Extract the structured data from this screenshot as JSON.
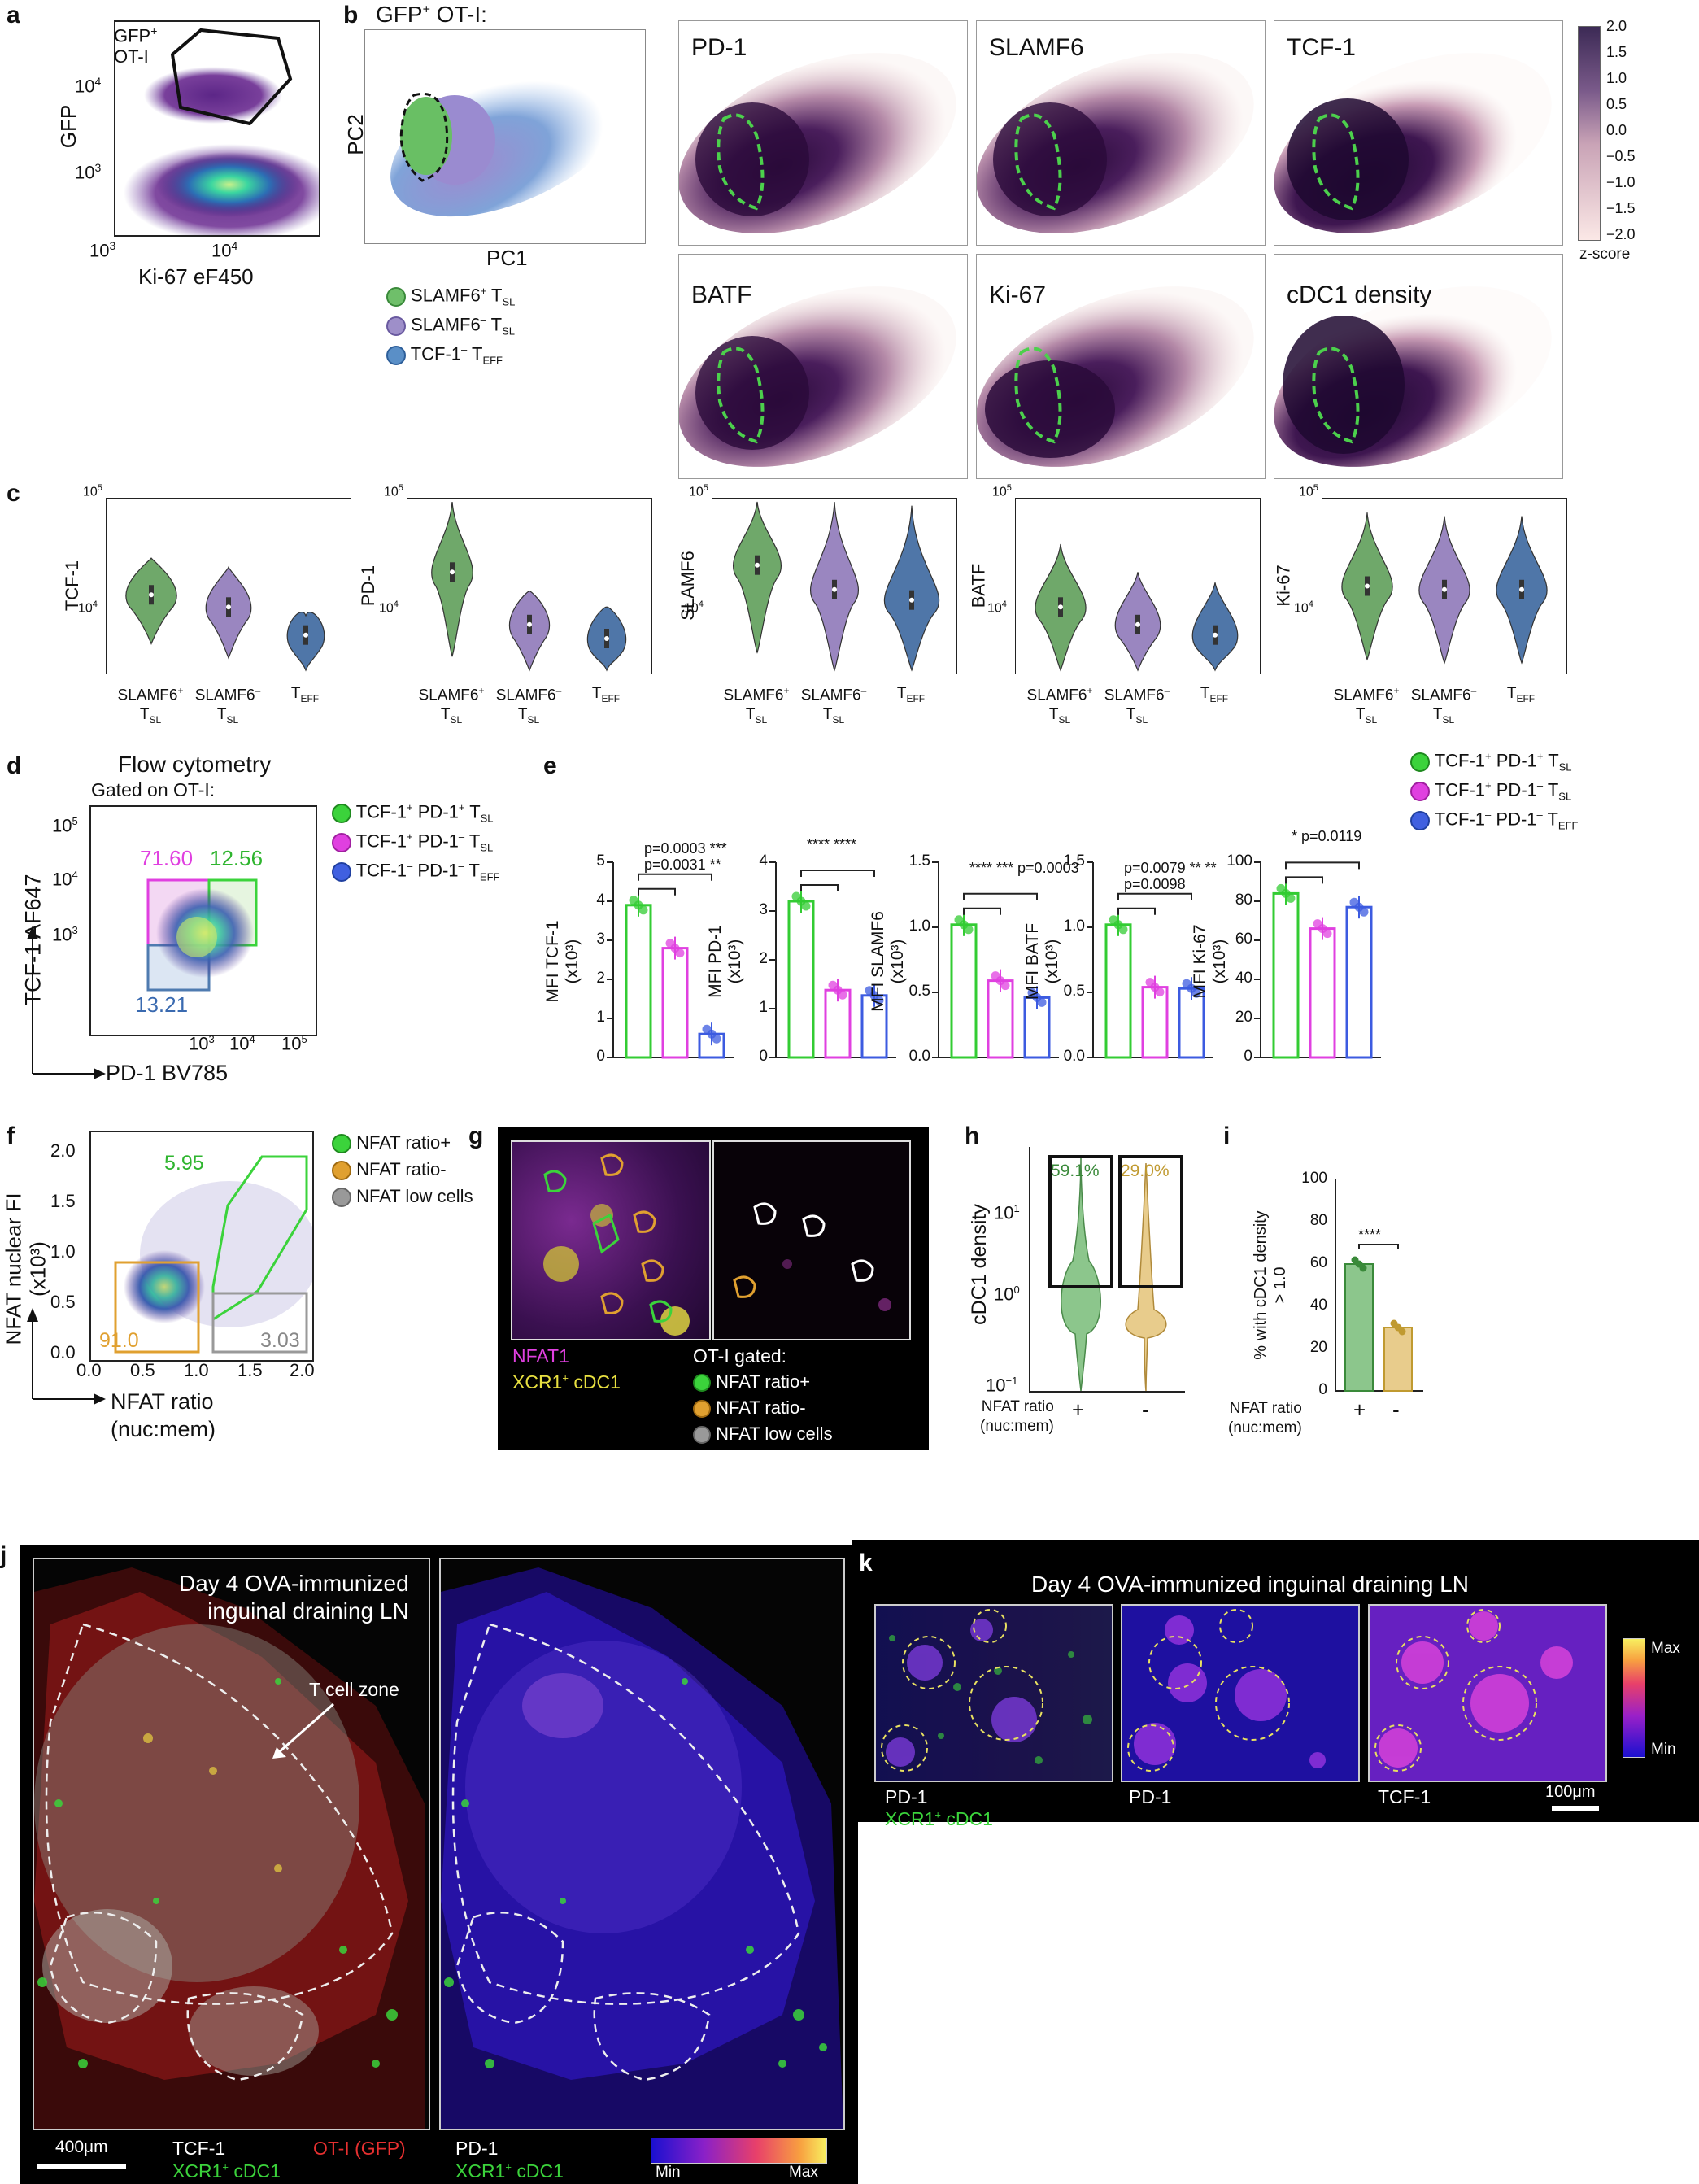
{
  "panel_letters": [
    "a",
    "b",
    "c",
    "d",
    "e",
    "f",
    "g",
    "h",
    "i",
    "j",
    "k"
  ],
  "a": {
    "gate_label_1": "GFP",
    "gate_label_sup": "+",
    "gate_label_2": "OT-I",
    "ylabel": "GFP",
    "xlabel": "Ki-67 eF450",
    "yticks": [
      "10",
      "10"
    ],
    "ytick_exp": [
      "4",
      "3"
    ],
    "xticks": [
      "10",
      "10"
    ],
    "xtick_exp": [
      "3",
      "4"
    ]
  },
  "b": {
    "title": "GFP",
    "title_sup": "+",
    "title_rest": " OT-I:",
    "xlabel": "PC1",
    "ylabel": "PC2",
    "legend": [
      {
        "main": "SLAMF6",
        "sup": "+",
        "rest": " T",
        "sub": "SL",
        "color": "#6fbf6a"
      },
      {
        "main": "SLAMF6",
        "sup": "–",
        "rest": " T",
        "sub": "SL",
        "color": "#9e8fc9"
      },
      {
        "main": "TCF-1",
        "sup": "–",
        "rest": " T",
        "sub": "EFF",
        "color": "#5a8fc7"
      }
    ],
    "maps": [
      "PD-1",
      "SLAMF6",
      "TCF-1",
      "BATF",
      "Ki-67",
      "cDC1 density"
    ],
    "colorbar_ticks": [
      "2.0",
      "1.5",
      "1.0",
      "0.5",
      "0.0",
      "−0.5",
      "−1.0",
      "−1.5",
      "−2.0"
    ],
    "colorbar_label": "z-score"
  },
  "c": {
    "markers": [
      "TCF-1",
      "PD-1",
      "SLAMF6",
      "BATF",
      "Ki-67"
    ],
    "ytick_base": "10",
    "ytick_exp": [
      "5",
      "4"
    ],
    "groups": [
      {
        "main": "SLAMF6",
        "sup": "+",
        "sub_main": "T",
        "sub": "SL",
        "color": "#6fa86a"
      },
      {
        "main": "SLAMF6",
        "sup": "–",
        "sub_main": "T",
        "sub": "SL",
        "color": "#9a86c0"
      },
      {
        "main": "T",
        "sub": "EFF",
        "color": "#4f76a8"
      }
    ]
  },
  "d": {
    "title": "Flow cytometry",
    "subtitle": "Gated on OT-I:",
    "ylabel": "TCF-1 AF647",
    "xlabel": "PD-1 BV785",
    "gate_values": [
      "71.60",
      "12.56",
      "13.21"
    ],
    "ticks_base": "10",
    "ytick_exp": [
      "5",
      "4",
      "3"
    ],
    "xtick_exp": [
      "3",
      "4",
      "5"
    ],
    "legend": [
      {
        "main": "TCF-1",
        "sup": "+",
        "mid": " PD-1",
        "sup2": "+",
        "rest": " T",
        "sub": "SL",
        "color": "#3bd33b"
      },
      {
        "main": "TCF-1",
        "sup": "+",
        "mid": " PD-1",
        "sup2": "–",
        "rest": " T",
        "sub": "SL",
        "color": "#e040e0"
      },
      {
        "main": "TCF-1",
        "sup": "–",
        "mid": " PD-1",
        "sup2": "–",
        "rest": " T",
        "sub": "EFF",
        "color": "#4060e0"
      }
    ]
  },
  "e": {
    "colors": [
      "#33cc33",
      "#e040e0",
      "#3c5be0"
    ],
    "charts": [
      {
        "ylabel1": "MFI TCF-1",
        "ylabel2": "(x10³)",
        "yticks": [
          "0",
          "1",
          "2",
          "3",
          "4",
          "5"
        ],
        "ymax": 5,
        "values": [
          3.9,
          2.8,
          0.6
        ],
        "sig": [
          "p=0.0003",
          "***",
          "p=0.0031",
          "**"
        ]
      },
      {
        "ylabel1": "MFI PD-1",
        "ylabel2": "(x10³)",
        "yticks": [
          "0",
          "1",
          "2",
          "3",
          "4"
        ],
        "ymax": 4,
        "values": [
          3.2,
          1.38,
          1.27
        ],
        "sig": [
          "****",
          "****"
        ]
      },
      {
        "ylabel1": "MFI SLAMF6",
        "ylabel2": "(x10³)",
        "yticks": [
          "0.0",
          "0.5",
          "1.0",
          "1.5"
        ],
        "ymax": 1.5,
        "values": [
          1.02,
          0.59,
          0.46
        ],
        "sig": [
          "****",
          "***",
          "p=0.0003"
        ]
      },
      {
        "ylabel1": "MFI BATF",
        "ylabel2": "(x10³)",
        "yticks": [
          "0.0",
          "0.5",
          "1.0",
          "1.5"
        ],
        "ymax": 1.5,
        "values": [
          1.02,
          0.54,
          0.53
        ],
        "sig": [
          "p=0.0079",
          "**",
          "**",
          "p=0.0098"
        ]
      },
      {
        "ylabel1": "MFI Ki-67",
        "ylabel2": "(x10³)",
        "yticks": [
          "0",
          "20",
          "40",
          "60",
          "80",
          "100"
        ],
        "ymax": 100,
        "values": [
          84,
          66,
          77
        ],
        "sig": [
          "*",
          "p=0.0119"
        ]
      }
    ],
    "legend": [
      {
        "main": "TCF-1",
        "sup": "+",
        "mid": " PD-1",
        "sup2": "+",
        "rest": " T",
        "sub": "SL",
        "color": "#3bd33b"
      },
      {
        "main": "TCF-1",
        "sup": "+",
        "mid": " PD-1",
        "sup2": "–",
        "rest": " T",
        "sub": "SL",
        "color": "#e040e0"
      },
      {
        "main": "TCF-1",
        "sup": "–",
        "mid": " PD-1",
        "sup2": "–",
        "rest": " T",
        "sub": "EFF",
        "color": "#4060e0"
      }
    ]
  },
  "f": {
    "ylabel1": "NFAT nuclear FI",
    "ylabel2": "(x10³)",
    "xlabel1": "NFAT ratio",
    "xlabel2": "(nuc:mem)",
    "gate_values": [
      "5.95",
      "91.0",
      "3.03"
    ],
    "yticks": [
      "0.0",
      "0.5",
      "1.0",
      "1.5",
      "2.0"
    ],
    "xticks": [
      "0.0",
      "0.5",
      "1.0",
      "1.5",
      "2.0"
    ],
    "legend": [
      {
        "label": "NFAT ratio+",
        "color": "#3bd33b"
      },
      {
        "label": "NFAT ratio-",
        "color": "#e0a030"
      },
      {
        "label": "NFAT low cells",
        "color": "#999999"
      }
    ]
  },
  "g": {
    "label1": "NFAT1",
    "label2": "XCR1",
    "label2_sup": "+",
    "label2_rest": " cDC1",
    "gated_title": "OT-I gated:",
    "legend": [
      {
        "label": "NFAT ratio+",
        "color": "#3bd33b"
      },
      {
        "label": "NFAT ratio-",
        "color": "#e0a030"
      },
      {
        "label": "NFAT low cells",
        "color": "#999999"
      }
    ]
  },
  "h": {
    "ylabel": "cDC1 density",
    "pct": [
      "59.1%",
      "29.0%"
    ],
    "ytick_base": "10",
    "ytick_exp": [
      "1",
      "0",
      "−1"
    ],
    "xlabel1": "NFAT ratio",
    "xlabel2": "(nuc:mem)",
    "xcats": [
      "+",
      "-"
    ]
  },
  "i": {
    "ylabel1": "% with cDC1 density",
    "ylabel2": "> 1.0",
    "yticks": [
      "0",
      "20",
      "40",
      "60",
      "80",
      "100"
    ],
    "values": [
      60,
      30
    ],
    "sig": "****",
    "xlabel1": "NFAT ratio",
    "xlabel2": "(nuc:mem)",
    "xcats": [
      "+",
      "-"
    ]
  },
  "j": {
    "title1": "Day 4 OVA-immunized",
    "title2": "inguinal draining LN",
    "zone": "T cell zone",
    "scalebar": "400μm",
    "left_labels": {
      "l1": "TCF-1",
      "l2": "OT-I (GFP)",
      "l3": "XCR1",
      "l3_sup": "+",
      "l3_rest": " cDC1"
    },
    "right_labels": {
      "l1": "PD-1",
      "l3": "XCR1",
      "l3_sup": "+",
      "l3_rest": " cDC1"
    },
    "colorbar": {
      "min": "Min",
      "max": "Max"
    }
  },
  "k": {
    "title": "Day 4 OVA-immunized inguinal draining LN",
    "labels": [
      "PD-1",
      "PD-1",
      "TCF-1"
    ],
    "sub_label": "XCR1",
    "sub_sup": "+",
    "sub_rest": " cDC1",
    "scalebar": "100μm",
    "colorbar": {
      "max": "Max",
      "min": "Min"
    }
  }
}
